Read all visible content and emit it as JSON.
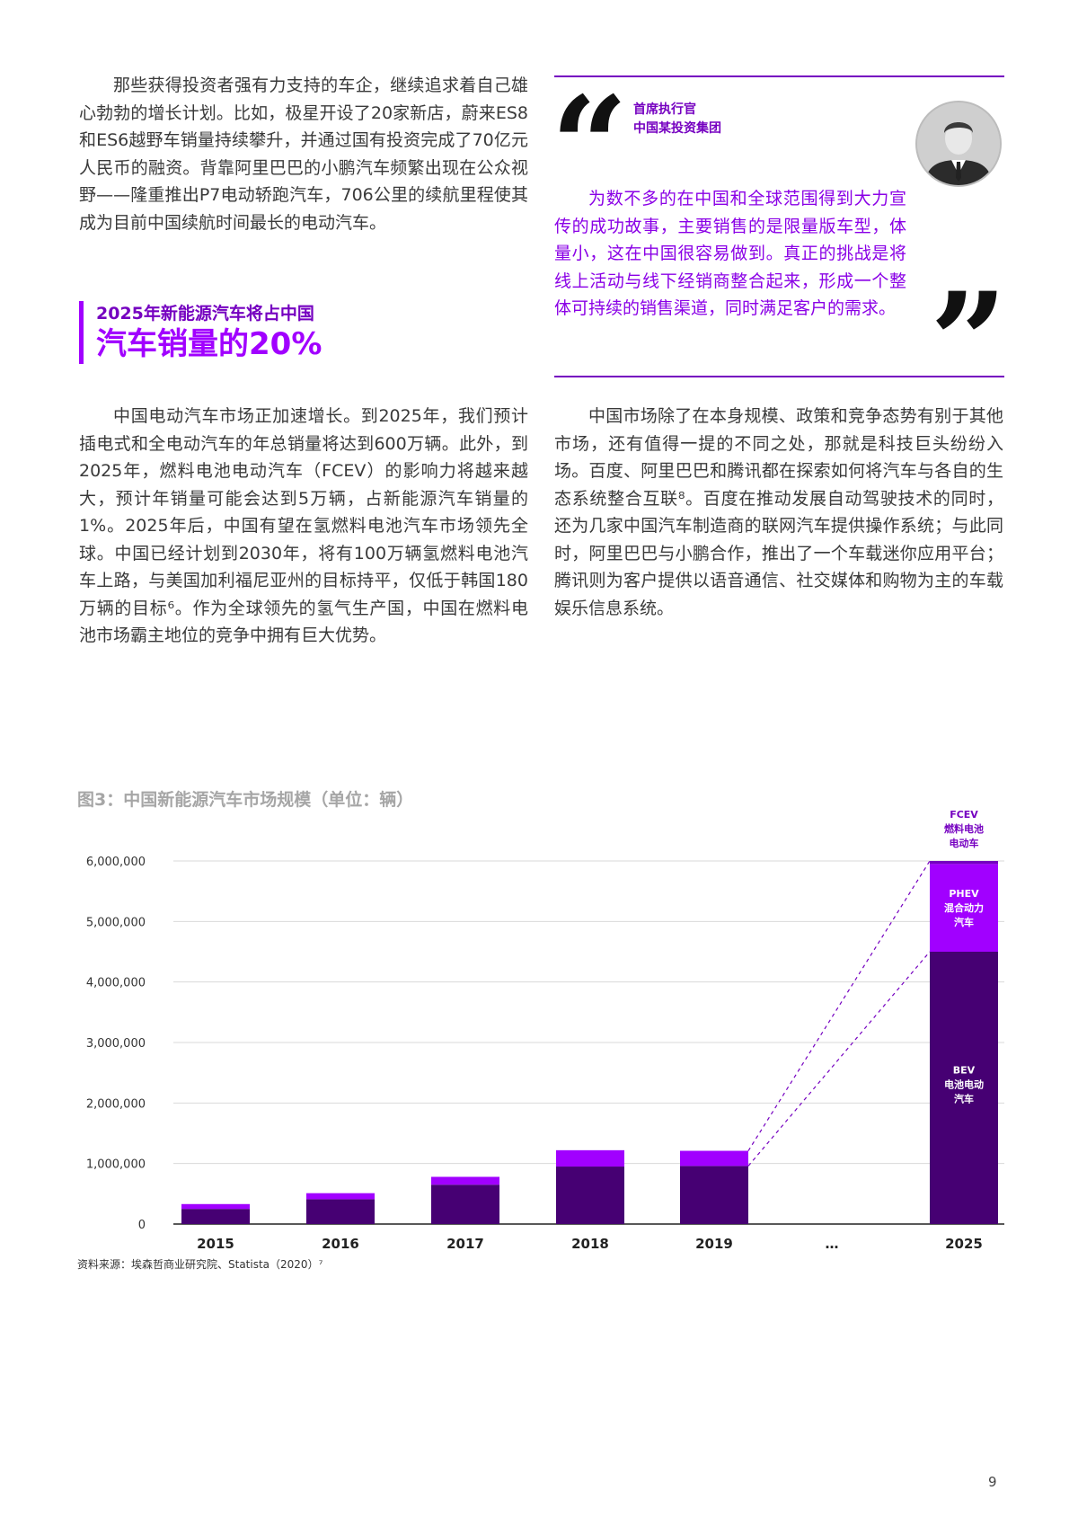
{
  "page": {
    "para_left_1": "那些获得投资者强有力支持的车企，继续追求着自己雄心勃勃的增长计划。比如，极星开设了20家新店，蔚来ES8和ES6越野车销量持续攀升，并通过国有投资完成了70亿元人民币的融资。背靠阿里巴巴的小鹏汽车频繁出现在公众视野——隆重推出P7电动轿跑汽车，706公里的续航里程使其成为目前中国续航时间最长的电动汽车。",
    "heading_small": "2025年新能源汽车将占中国",
    "heading_large": "汽车销量的20%",
    "para_left_2": "中国电动汽车市场正加速增长。到2025年，我们预计插电式和全电动汽车的年总销量将达到600万辆。此外，到2025年，燃料电池电动汽车（FCEV）的影响力将越来越大，预计年销量可能会达到5万辆，占新能源汽车销量的1%。2025年后，中国有望在氢燃料电池汽车市场领先全球。中国已经计划到2030年，将有100万辆氢燃料电池汽车上路，与美国加利福尼亚州的目标持平，仅低于韩国180万辆的目标⁶。作为全球领先的氢气生产国，中国在燃料电池市场霸主地位的竞争中拥有巨大优势。",
    "quote": {
      "exec_title_1": "首席执行官",
      "exec_title_2": "中国某投资集团",
      "open_mark": "“",
      "close_mark": "”",
      "text": "为数不多的在中国和全球范围得到大力宣传的成功故事，主要销售的是限量版车型，体量小，这在中国很容易做到。真正的挑战是将线上活动与线下经销商整合起来，形成一个整体可持续的销售渠道，同时满足客户的需求。"
    },
    "para_right_2": "中国市场除了在本身规模、政策和竞争态势有别于其他市场，还有值得一提的不同之处，那就是科技巨头纷纷入场。百度、阿里巴巴和腾讯都在探索如何将汽车与各自的生态系统整合互联⁸。百度在推动发展自动驾驶技术的同时，还为几家中国汽车制造商的联网汽车提供操作系统；与此同时，阿里巴巴与小鹏合作，推出了一个车载迷你应用平台；腾讯则为客户提供以语音通信、社交媒体和购物为主的车载娱乐信息系统。",
    "chart_title": "图3：中国新能源汽车市场规模（单位：辆）",
    "source": "资料来源：埃森哲商业研究院、Statista（2020）⁷",
    "page_number": "9"
  },
  "colors": {
    "bev": "#460073",
    "phev": "#a100ff",
    "fcev": "#7500c0",
    "accent": "#a100ff"
  },
  "chart_data": {
    "type": "bar",
    "stacked": true,
    "title": "图3：中国新能源汽车市场规模（单位：辆）",
    "categories": [
      "2015",
      "2016",
      "2017",
      "2018",
      "2019",
      "…",
      "2025"
    ],
    "series": [
      {
        "name": "BEV 电池电动汽车",
        "values": [
          250000,
          410000,
          650000,
          950000,
          960000,
          null,
          4500000
        ]
      },
      {
        "name": "PHEV 混合动力汽车",
        "values": [
          80000,
          100000,
          130000,
          270000,
          250000,
          null,
          1450000
        ]
      },
      {
        "name": "FCEV 燃料电池电动车",
        "values": [
          0,
          0,
          0,
          0,
          0,
          null,
          50000
        ]
      }
    ],
    "segment_labels": {
      "bev": [
        "BEV",
        "电池电动",
        "汽车"
      ],
      "phev": [
        "PHEV",
        "混合动力",
        "汽车"
      ],
      "fcev": [
        "FCEV",
        "燃料电池",
        "电动车"
      ]
    },
    "yticks": [
      "0",
      "1,000,000",
      "2,000,000",
      "3,000,000",
      "4,000,000",
      "5,000,000",
      "6,000,000"
    ],
    "ylim": [
      0,
      6000000
    ],
    "grid": true,
    "xlabel": "",
    "ylabel": ""
  }
}
